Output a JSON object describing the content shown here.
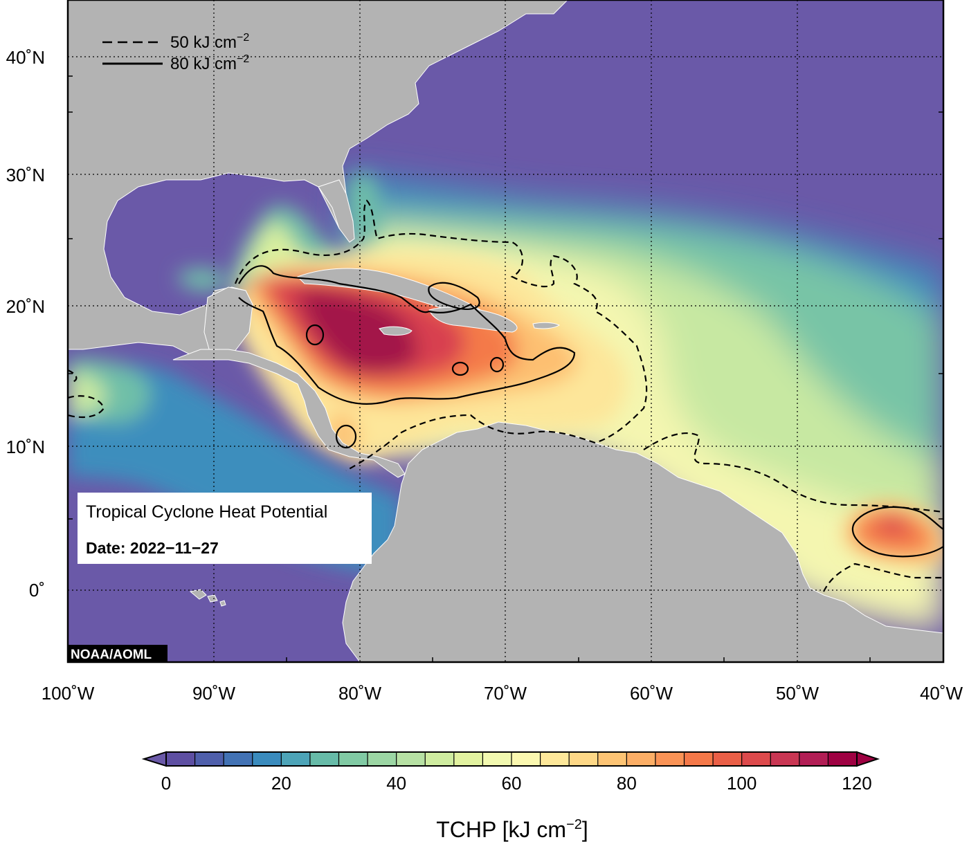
{
  "map": {
    "lon_range": [
      -100,
      -40
    ],
    "lat_range": [
      -5,
      44
    ],
    "x_ticks": [
      "100˚W",
      "90˚W",
      "80˚W",
      "70˚W",
      "60˚W",
      "50˚W",
      "40˚W"
    ],
    "y_ticks": [
      "0˚",
      "10˚N",
      "20˚N",
      "30˚N",
      "40˚N"
    ],
    "gridlines": "dotted",
    "colors": {
      "land": "#b3b3b3",
      "low": "#6a59a8",
      "contour": "#000000"
    }
  },
  "legend": {
    "dashed_label": "50 kJ cm",
    "dashed_exp": "−2",
    "solid_label": "80 kJ cm",
    "solid_exp": "−2"
  },
  "info_box": {
    "title": "Tropical Cyclone Heat Potential",
    "date": "Date: 2022−11−27"
  },
  "credit": "NOAA/AOML",
  "colorbar": {
    "label": "TCHP [kJ cm",
    "label_exp": "−2",
    "label_end": "]",
    "ticks": [
      "0",
      "20",
      "40",
      "60",
      "80",
      "100",
      "120"
    ],
    "min": 0,
    "max": 120,
    "step": 5,
    "colors": [
      "#5e4fa2",
      "#4f5fab",
      "#4272b4",
      "#3a8bbd",
      "#4da4b8",
      "#67bba8",
      "#81caa4",
      "#9cd6a4",
      "#b7e1a4",
      "#cfeca0",
      "#e2f2a0",
      "#f2f9b0",
      "#fbf8b0",
      "#fee89a",
      "#fed887",
      "#fdc474",
      "#fcae66",
      "#fa9356",
      "#f47849",
      "#ea5f47",
      "#dd4a4c",
      "#c93653",
      "#b21e55",
      "#9e0142"
    ]
  }
}
